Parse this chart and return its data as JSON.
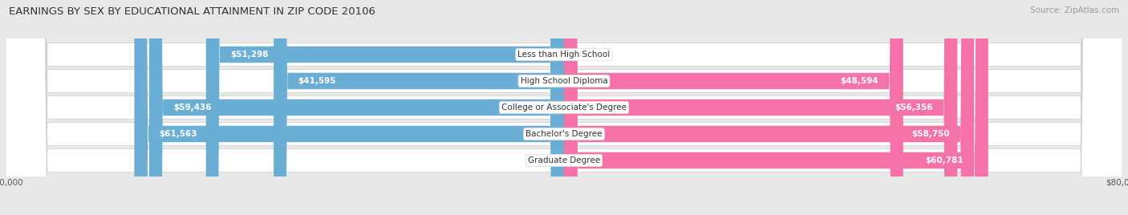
{
  "title": "EARNINGS BY SEX BY EDUCATIONAL ATTAINMENT IN ZIP CODE 20106",
  "source": "Source: ZipAtlas.com",
  "categories": [
    "Less than High School",
    "High School Diploma",
    "College or Associate's Degree",
    "Bachelor's Degree",
    "Graduate Degree"
  ],
  "male_values": [
    51298,
    41595,
    59436,
    61563,
    0
  ],
  "female_values": [
    0,
    48594,
    56356,
    58750,
    60781
  ],
  "male_color": "#6aaed6",
  "female_color": "#f472a8",
  "male_color_light": "#b8d8ee",
  "female_color_light": "#f9b8d0",
  "max_value": 80000,
  "bar_height": 0.62,
  "title_fontsize": 9.5,
  "label_fontsize": 7.5,
  "category_fontsize": 7.5,
  "source_fontsize": 7.5,
  "bg_color": "#e8e8e8"
}
